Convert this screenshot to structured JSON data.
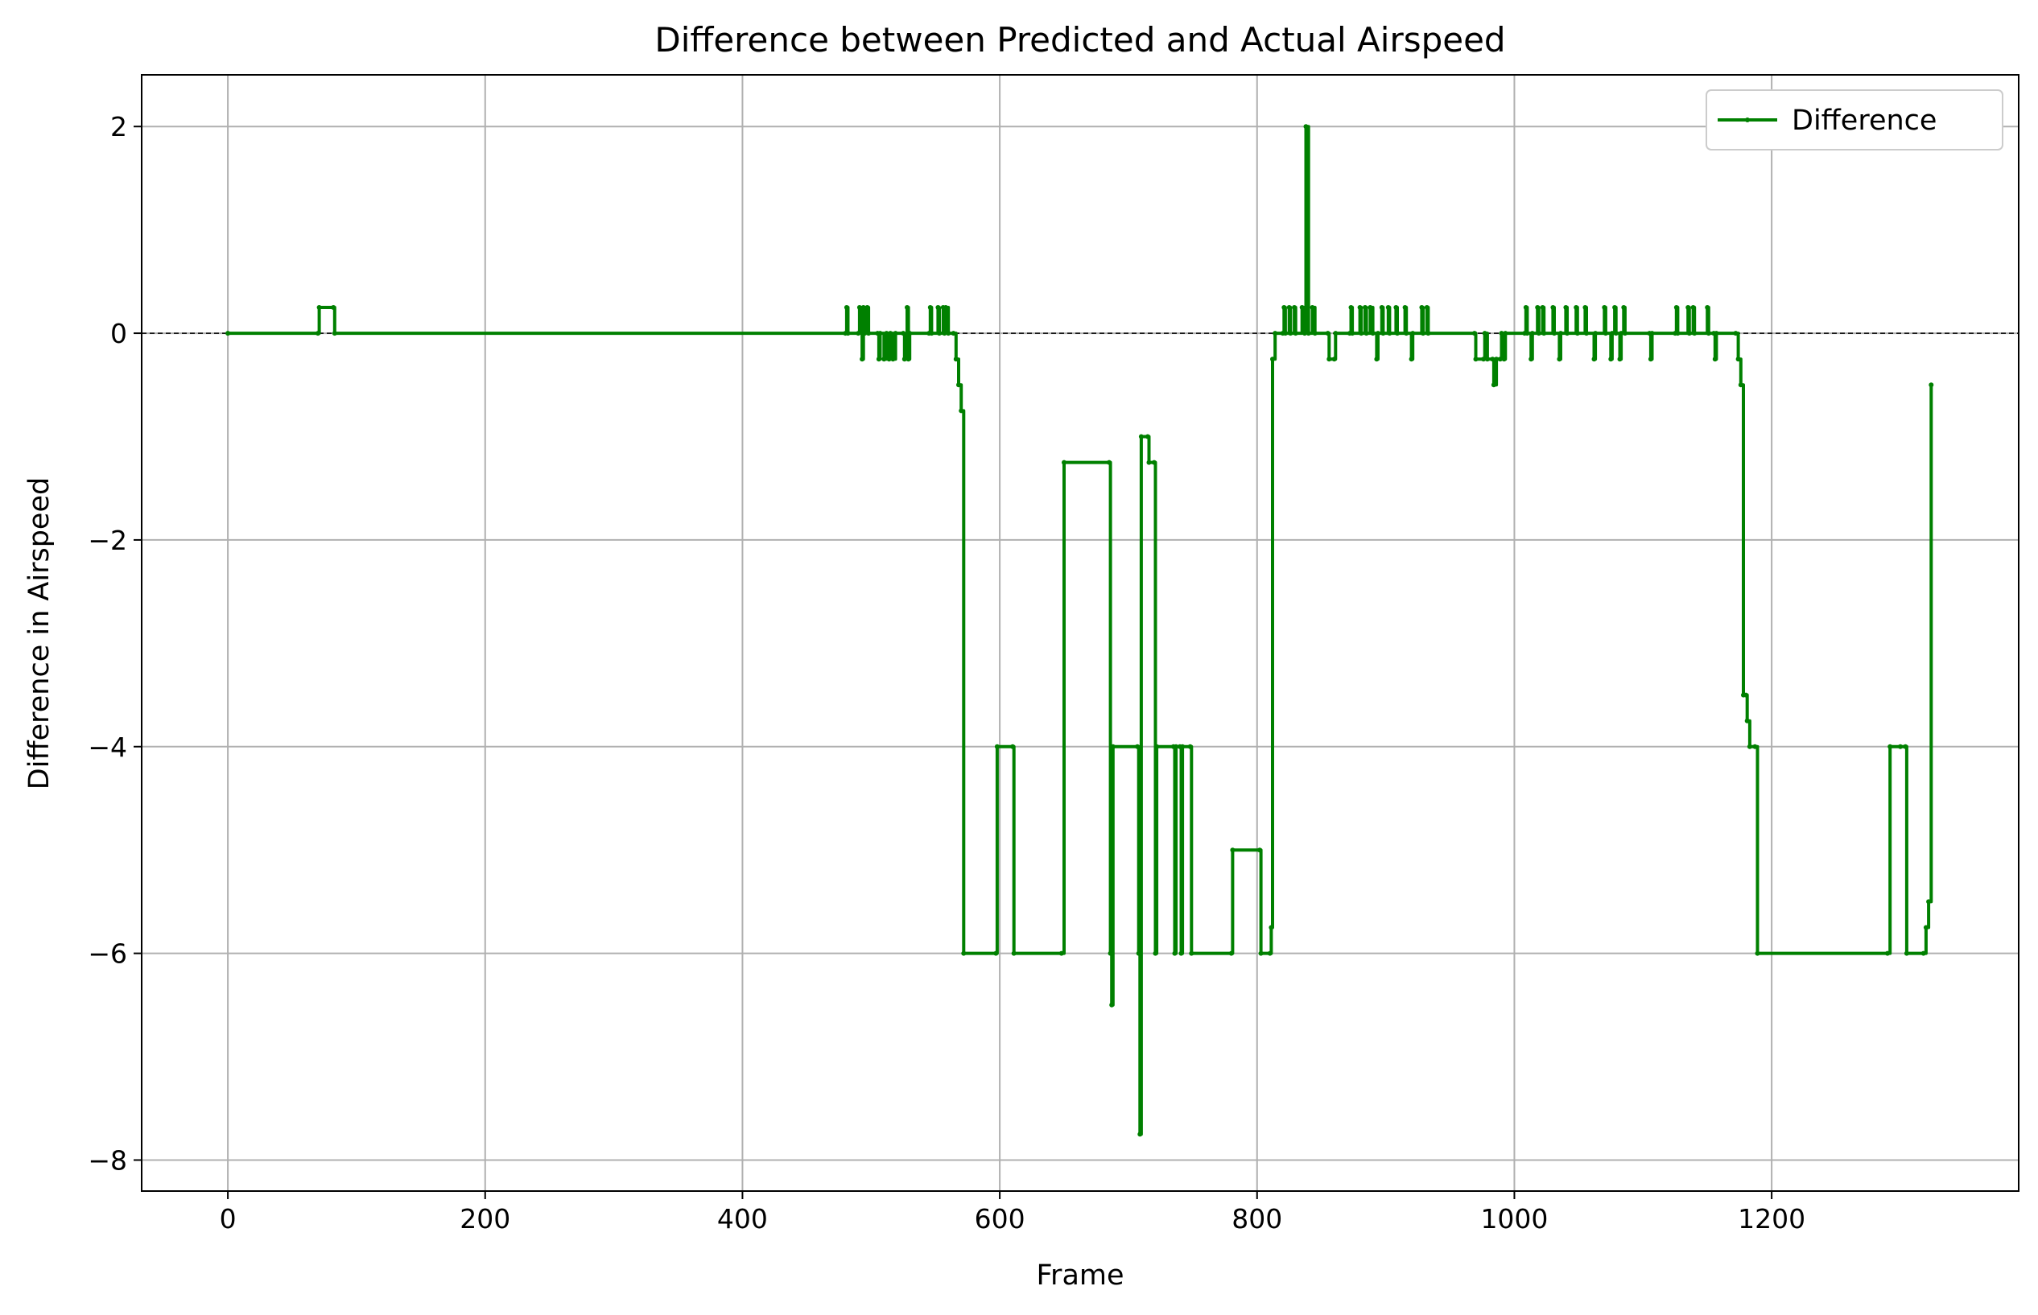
{
  "chart_data": {
    "type": "line",
    "title": "Difference between Predicted and Actual Airspeed",
    "xlabel": "Frame",
    "ylabel": "Difference in Airspeed",
    "xlim": [
      -67,
      1392
    ],
    "ylim": [
      -8.3,
      2.5
    ],
    "xticks": [
      0,
      200,
      400,
      600,
      800,
      1000,
      1200
    ],
    "yticks": [
      -8,
      -6,
      -4,
      -2,
      0,
      2
    ],
    "grid": true,
    "legend_position": "top-right",
    "reference_line": {
      "y": 0,
      "style": "dashed",
      "color": "#000000"
    },
    "series": [
      {
        "name": "Difference",
        "color": "#008000",
        "marker": "dot",
        "points": [
          [
            0,
            0
          ],
          [
            70,
            0
          ],
          [
            71,
            0.25
          ],
          [
            82,
            0.25
          ],
          [
            83,
            0
          ],
          [
            480,
            0
          ],
          [
            481,
            0.25
          ],
          [
            482,
            0
          ],
          [
            490,
            0
          ],
          [
            491,
            0.25
          ],
          [
            493,
            -0.25
          ],
          [
            494,
            0.25
          ],
          [
            495,
            0
          ],
          [
            497,
            0.25
          ],
          [
            498,
            0
          ],
          [
            505,
            0
          ],
          [
            506,
            -0.25
          ],
          [
            507,
            0
          ],
          [
            510,
            -0.25
          ],
          [
            512,
            0
          ],
          [
            514,
            -0.25
          ],
          [
            515,
            0
          ],
          [
            517,
            -0.25
          ],
          [
            519,
            0
          ],
          [
            525,
            0
          ],
          [
            526,
            -0.25
          ],
          [
            528,
            0.25
          ],
          [
            529,
            -0.25
          ],
          [
            530,
            0
          ],
          [
            545,
            0
          ],
          [
            546,
            0.25
          ],
          [
            547,
            0
          ],
          [
            552,
            0.25
          ],
          [
            553,
            0
          ],
          [
            556,
            0.25
          ],
          [
            557,
            0
          ],
          [
            558,
            0.25
          ],
          [
            560,
            0
          ],
          [
            564,
            0
          ],
          [
            566,
            -0.25
          ],
          [
            568,
            -0.5
          ],
          [
            570,
            -0.75
          ],
          [
            572,
            -6
          ],
          [
            597,
            -6
          ],
          [
            598,
            -4
          ],
          [
            610,
            -4
          ],
          [
            611,
            -6
          ],
          [
            648,
            -6
          ],
          [
            650,
            -1.25
          ],
          [
            685,
            -1.25
          ],
          [
            686,
            -6
          ],
          [
            687,
            -6.5
          ],
          [
            688,
            -4
          ],
          [
            707,
            -4
          ],
          [
            708,
            -6
          ],
          [
            709,
            -7.75
          ],
          [
            710,
            -1
          ],
          [
            715,
            -1
          ],
          [
            716,
            -1.25
          ],
          [
            720,
            -1.25
          ],
          [
            721,
            -6
          ],
          [
            722,
            -4
          ],
          [
            735,
            -4
          ],
          [
            736,
            -6
          ],
          [
            737,
            -4
          ],
          [
            740,
            -4
          ],
          [
            741,
            -6
          ],
          [
            742,
            -4
          ],
          [
            748,
            -4
          ],
          [
            749,
            -6
          ],
          [
            780,
            -6
          ],
          [
            781,
            -5
          ],
          [
            802,
            -5
          ],
          [
            803,
            -6
          ],
          [
            810,
            -6
          ],
          [
            811,
            -5.75
          ],
          [
            812,
            -0.25
          ],
          [
            814,
            0
          ],
          [
            820,
            0
          ],
          [
            821,
            0.25
          ],
          [
            822,
            0
          ],
          [
            825,
            0.25
          ],
          [
            826,
            0
          ],
          [
            829,
            0.25
          ],
          [
            830,
            0
          ],
          [
            835,
            0.25
          ],
          [
            837,
            0
          ],
          [
            838,
            2
          ],
          [
            840,
            0
          ],
          [
            843,
            0.25
          ],
          [
            845,
            0
          ],
          [
            855,
            0
          ],
          [
            856,
            -0.25
          ],
          [
            860,
            -0.25
          ],
          [
            861,
            0
          ],
          [
            872,
            0
          ],
          [
            873,
            0.25
          ],
          [
            874,
            0
          ],
          [
            880,
            0.25
          ],
          [
            881,
            0
          ],
          [
            884,
            0.25
          ],
          [
            885,
            0
          ],
          [
            888,
            0.25
          ],
          [
            890,
            0
          ],
          [
            893,
            -0.25
          ],
          [
            894,
            0
          ],
          [
            897,
            0.25
          ],
          [
            898,
            0
          ],
          [
            902,
            0.25
          ],
          [
            903,
            0
          ],
          [
            908,
            0.25
          ],
          [
            909,
            0
          ],
          [
            915,
            0.25
          ],
          [
            916,
            0
          ],
          [
            920,
            -0.25
          ],
          [
            921,
            0
          ],
          [
            928,
            0.25
          ],
          [
            929,
            0
          ],
          [
            932,
            0.25
          ],
          [
            933,
            0
          ],
          [
            969,
            0
          ],
          [
            970,
            -0.25
          ],
          [
            976,
            -0.25
          ],
          [
            977,
            0
          ],
          [
            979,
            -0.25
          ],
          [
            983,
            -0.25
          ],
          [
            984,
            -0.5
          ],
          [
            986,
            -0.25
          ],
          [
            989,
            -0.25
          ],
          [
            990,
            0
          ],
          [
            992,
            -0.25
          ],
          [
            993,
            0
          ],
          [
            1008,
            0
          ],
          [
            1009,
            0.25
          ],
          [
            1010,
            0
          ],
          [
            1013,
            -0.25
          ],
          [
            1014,
            0
          ],
          [
            1018,
            0.25
          ],
          [
            1019,
            0
          ],
          [
            1022,
            0.25
          ],
          [
            1023,
            0
          ],
          [
            1030,
            0.25
          ],
          [
            1031,
            0
          ],
          [
            1035,
            -0.25
          ],
          [
            1036,
            0
          ],
          [
            1040,
            0.25
          ],
          [
            1041,
            0
          ],
          [
            1048,
            0.25
          ],
          [
            1049,
            0
          ],
          [
            1055,
            0.25
          ],
          [
            1056,
            0
          ],
          [
            1062,
            -0.25
          ],
          [
            1063,
            0
          ],
          [
            1070,
            0.25
          ],
          [
            1071,
            0
          ],
          [
            1075,
            -0.25
          ],
          [
            1076,
            0
          ],
          [
            1078,
            0.25
          ],
          [
            1079,
            0
          ],
          [
            1082,
            -0.25
          ],
          [
            1083,
            0
          ],
          [
            1085,
            0.25
          ],
          [
            1086,
            0
          ],
          [
            1105,
            0
          ],
          [
            1106,
            -0.25
          ],
          [
            1107,
            0
          ],
          [
            1125,
            0
          ],
          [
            1126,
            0.25
          ],
          [
            1127,
            0
          ],
          [
            1135,
            0.25
          ],
          [
            1136,
            0
          ],
          [
            1139,
            0.25
          ],
          [
            1140,
            0
          ],
          [
            1150,
            0.25
          ],
          [
            1151,
            0
          ],
          [
            1155,
            0
          ],
          [
            1156,
            -0.25
          ],
          [
            1157,
            0
          ],
          [
            1172,
            0
          ],
          [
            1174,
            -0.25
          ],
          [
            1176,
            -0.5
          ],
          [
            1178,
            -3.5
          ],
          [
            1180,
            -3.5
          ],
          [
            1181,
            -3.75
          ],
          [
            1183,
            -4
          ],
          [
            1187,
            -4
          ],
          [
            1189,
            -6
          ],
          [
            1290,
            -6
          ],
          [
            1292,
            -4
          ],
          [
            1300,
            -4
          ],
          [
            1304,
            -4
          ],
          [
            1305,
            -6
          ],
          [
            1318,
            -6
          ],
          [
            1320,
            -5.75
          ],
          [
            1322,
            -5.5
          ],
          [
            1324,
            -0.5
          ]
        ]
      }
    ]
  }
}
